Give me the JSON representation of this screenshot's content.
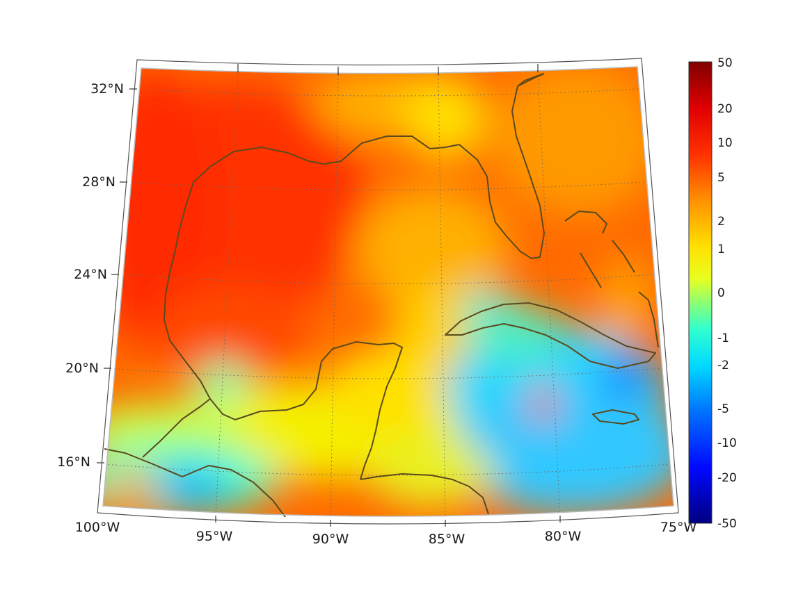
{
  "map": {
    "lon_range": [
      -100,
      -75
    ],
    "lat_range": [
      14,
      33
    ],
    "graticule": "dotted",
    "lon_labels": [
      "100°W",
      "95°W",
      "90°W",
      "85°W",
      "80°W",
      "75°W"
    ],
    "lat_labels": [
      "16°N",
      "20°N",
      "24°N",
      "28°N",
      "32°N"
    ],
    "coastline_color": "#5a4a1e",
    "field_colormap": "jet"
  },
  "colorbar": {
    "labels": [
      "50",
      "20",
      "10",
      "5",
      "2",
      "1",
      "0",
      "-1",
      "-2",
      "-5",
      "-10",
      "-20",
      "-50"
    ],
    "colors": {
      "top": "#800000",
      "red": "#ff0000",
      "orange": "#ff8000",
      "yellow": "#ffff00",
      "green": "#80ff80",
      "cyan": "#00ffff",
      "blue": "#0000ff",
      "bottom": "#000080"
    }
  }
}
